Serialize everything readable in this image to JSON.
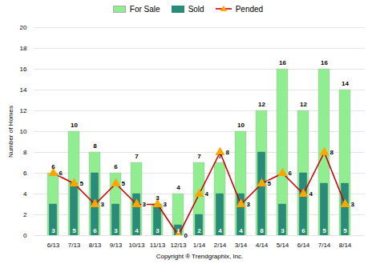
{
  "chart_data": {
    "type": "bar",
    "categories": [
      "6/13",
      "7/13",
      "8/13",
      "9/13",
      "10/13",
      "11/13",
      "12/13",
      "1/14",
      "2/14",
      "3/14",
      "4/14",
      "5/14",
      "6/14",
      "7/14",
      "8/14"
    ],
    "series": [
      {
        "name": "For Sale",
        "type": "bar",
        "color": "#90ee90",
        "values": [
          6,
          10,
          8,
          6,
          7,
          3,
          4,
          7,
          7,
          10,
          12,
          16,
          12,
          16,
          14
        ]
      },
      {
        "name": "Sold",
        "type": "bar",
        "color": "#2a8b78",
        "values": [
          3,
          5,
          6,
          3,
          4,
          3,
          1,
          2,
          4,
          4,
          8,
          3,
          6,
          5,
          5
        ]
      },
      {
        "name": "Pended",
        "type": "line",
        "color": "#cc0000",
        "marker": "triangle",
        "values": [
          6,
          5,
          3,
          5,
          3,
          3,
          0,
          4,
          8,
          3,
          5,
          6,
          4,
          8,
          3
        ]
      }
    ],
    "xlabel": "Copyright ® Trendgraphix, Inc.",
    "ylabel": "Number of Homes",
    "ylim": [
      0,
      20
    ],
    "yticks": [
      0,
      2,
      4,
      6,
      8,
      10,
      12,
      14,
      16,
      18,
      20
    ],
    "grid": true,
    "data_labels": true,
    "legend": "top"
  }
}
